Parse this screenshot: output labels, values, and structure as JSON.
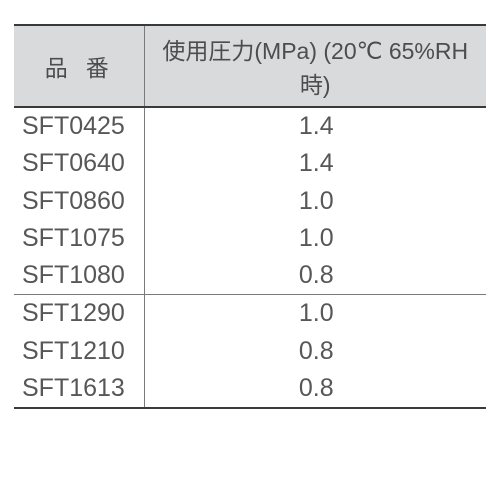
{
  "table": {
    "header": {
      "col1": "品番",
      "col2": "使用圧力(MPa) (20℃ 65%RH時)"
    },
    "header_bg": "#d9dadc",
    "border_color": "#3a3a3a",
    "text_color": "#575757",
    "rows": [
      {
        "pn": "SFT0425",
        "val": "1.4"
      },
      {
        "pn": "SFT0640",
        "val": "1.4"
      },
      {
        "pn": "SFT0860",
        "val": "1.0"
      },
      {
        "pn": "SFT1075",
        "val": "1.0"
      },
      {
        "pn": "SFT1080",
        "val": "0.8"
      },
      {
        "pn": "SFT1290",
        "val": "1.0"
      },
      {
        "pn": "SFT1210",
        "val": "0.8"
      },
      {
        "pn": "SFT1613",
        "val": "0.8"
      }
    ],
    "group_break_after_index": 4
  }
}
